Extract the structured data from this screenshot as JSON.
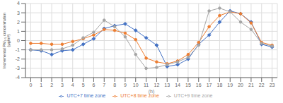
{
  "chart_data": {
    "type": "line",
    "xlabel": "(h)",
    "ylabel": "Incremental PM₂.₅ concentration\n(μg/m³)",
    "x": [
      0,
      1,
      2,
      3,
      4,
      5,
      6,
      7,
      8,
      9,
      10,
      11,
      12,
      13,
      14,
      15,
      16,
      17,
      18,
      19,
      20,
      21,
      22,
      23
    ],
    "series": [
      {
        "name": "UTC+7 time zone",
        "color": "#4472C4",
        "marker": "diamond",
        "values": [
          -1.0,
          -1.1,
          -1.5,
          -1.1,
          -1.0,
          -0.4,
          0.2,
          1.3,
          1.6,
          1.8,
          1.1,
          0.3,
          -0.5,
          -2.8,
          -2.6,
          -2.0,
          -0.4,
          0.6,
          2.0,
          3.2,
          2.9,
          2.0,
          -0.4,
          -0.7
        ]
      },
      {
        "name": "UTC+8 time zone",
        "color": "#ED7D31",
        "marker": "circle",
        "values": [
          -0.3,
          -0.3,
          -0.4,
          -0.4,
          -0.1,
          0.2,
          0.6,
          1.2,
          1.1,
          0.8,
          0.1,
          -1.9,
          -2.3,
          -2.5,
          -2.2,
          -1.5,
          -0.2,
          1.5,
          2.7,
          3.1,
          2.9,
          1.9,
          -0.2,
          -0.5
        ]
      },
      {
        "name": "UTC+9 time zone",
        "color": "#A5A5A5",
        "marker": "circle",
        "values": [
          -1.0,
          -1.0,
          -1.0,
          -0.9,
          -0.5,
          0.3,
          0.9,
          2.2,
          1.5,
          0.4,
          -1.5,
          -3.0,
          -2.9,
          -2.6,
          -2.3,
          -1.8,
          -0.5,
          3.2,
          3.5,
          3.1,
          2.0,
          1.2,
          -0.3,
          -0.6
        ]
      }
    ],
    "xlim": [
      -0.5,
      23.5
    ],
    "xticks": [
      0,
      1,
      2,
      3,
      4,
      5,
      6,
      7,
      8,
      9,
      10,
      11,
      12,
      13,
      14,
      15,
      16,
      17,
      18,
      19,
      20,
      21,
      22,
      23
    ],
    "ylim": [
      -4,
      4
    ],
    "yticks": [
      -4,
      -3,
      -2,
      -1,
      0,
      1,
      2,
      3,
      4
    ],
    "grid": true,
    "legend": "bottom"
  }
}
